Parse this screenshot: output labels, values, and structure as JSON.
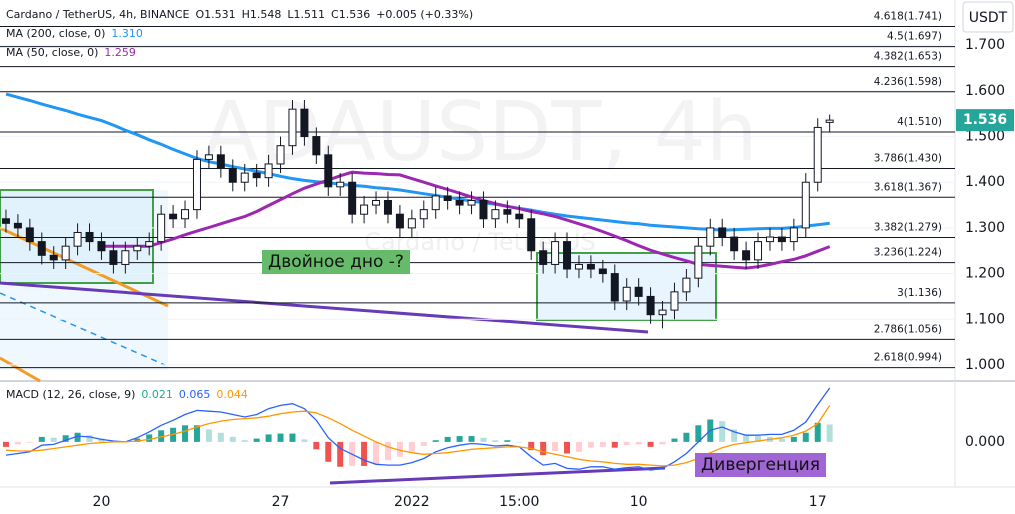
{
  "chart_data": [
    {
      "type": "candlestick",
      "legend_text": {
        "symbol": "Cardano / TetherUS, 4h, BINANCE",
        "open": "O1.531",
        "high": "H1.548",
        "low": "L1.511",
        "close": "C1.536",
        "change": "+0.005 (+0.33%)"
      },
      "watermark": "ADAUSDT, 4h",
      "watermark_sub": "Cardano / TetherUS",
      "currency": "USDT",
      "categories": [
        null,
        null,
        null,
        null,
        null,
        null,
        null,
        null,
        "20",
        null,
        null,
        null,
        null,
        null,
        null,
        null,
        null,
        null,
        null,
        null,
        null,
        null,
        null,
        "27",
        null,
        null,
        null,
        null,
        null,
        null,
        null,
        null,
        null,
        null,
        "2022",
        null,
        null,
        null,
        null,
        null,
        null,
        null,
        null,
        "15:00",
        null,
        null,
        null,
        null,
        null,
        null,
        null,
        null,
        null,
        "10",
        null,
        null,
        null,
        null,
        null,
        null,
        null,
        null,
        null,
        null,
        null,
        null,
        null,
        null,
        "17",
        null
      ],
      "open": [
        1.32,
        1.31,
        1.3,
        1.27,
        1.24,
        1.23,
        1.26,
        1.29,
        1.27,
        1.25,
        1.22,
        1.25,
        1.26,
        1.27,
        1.33,
        1.32,
        1.34,
        1.45,
        1.46,
        1.43,
        1.4,
        1.42,
        1.41,
        1.44,
        1.48,
        1.56,
        1.5,
        1.46,
        1.39,
        1.4,
        1.33,
        1.35,
        1.36,
        1.33,
        1.3,
        1.32,
        1.34,
        1.37,
        1.36,
        1.35,
        1.36,
        1.32,
        1.34,
        1.33,
        1.32,
        1.25,
        1.22,
        1.27,
        1.21,
        1.22,
        1.21,
        1.2,
        1.14,
        1.17,
        1.15,
        1.11,
        1.12,
        1.16,
        1.19,
        1.26,
        1.3,
        1.28,
        1.25,
        1.23,
        1.27,
        1.28,
        1.27,
        1.3,
        1.4,
        1.531
      ],
      "high": [
        1.34,
        1.33,
        1.32,
        1.29,
        1.26,
        1.28,
        1.31,
        1.31,
        1.29,
        1.27,
        1.27,
        1.28,
        1.29,
        1.35,
        1.35,
        1.36,
        1.47,
        1.48,
        1.48,
        1.45,
        1.44,
        1.44,
        1.46,
        1.5,
        1.58,
        1.58,
        1.52,
        1.48,
        1.42,
        1.42,
        1.37,
        1.38,
        1.38,
        1.35,
        1.34,
        1.36,
        1.39,
        1.39,
        1.38,
        1.38,
        1.38,
        1.36,
        1.36,
        1.35,
        1.34,
        1.27,
        1.29,
        1.29,
        1.24,
        1.24,
        1.23,
        1.22,
        1.19,
        1.19,
        1.17,
        1.14,
        1.18,
        1.21,
        1.28,
        1.32,
        1.32,
        1.3,
        1.27,
        1.29,
        1.3,
        1.3,
        1.32,
        1.42,
        1.54,
        1.548
      ],
      "low": [
        1.29,
        1.28,
        1.25,
        1.22,
        1.21,
        1.21,
        1.24,
        1.25,
        1.23,
        1.2,
        1.2,
        1.23,
        1.24,
        1.25,
        1.3,
        1.3,
        1.32,
        1.43,
        1.41,
        1.38,
        1.38,
        1.39,
        1.39,
        1.42,
        1.46,
        1.48,
        1.44,
        1.37,
        1.37,
        1.31,
        1.31,
        1.33,
        1.31,
        1.28,
        1.28,
        1.3,
        1.32,
        1.34,
        1.33,
        1.33,
        1.3,
        1.3,
        1.31,
        1.3,
        1.23,
        1.2,
        1.2,
        1.19,
        1.19,
        1.19,
        1.18,
        1.12,
        1.12,
        1.13,
        1.09,
        1.08,
        1.1,
        1.14,
        1.17,
        1.24,
        1.26,
        1.23,
        1.21,
        1.21,
        1.25,
        1.25,
        1.25,
        1.28,
        1.38,
        1.511
      ],
      "close": [
        1.31,
        1.3,
        1.27,
        1.24,
        1.23,
        1.26,
        1.29,
        1.27,
        1.25,
        1.22,
        1.25,
        1.26,
        1.27,
        1.33,
        1.32,
        1.34,
        1.45,
        1.46,
        1.43,
        1.4,
        1.42,
        1.41,
        1.44,
        1.48,
        1.56,
        1.5,
        1.46,
        1.39,
        1.4,
        1.33,
        1.35,
        1.36,
        1.33,
        1.3,
        1.32,
        1.34,
        1.37,
        1.36,
        1.35,
        1.36,
        1.32,
        1.34,
        1.33,
        1.32,
        1.25,
        1.22,
        1.27,
        1.21,
        1.22,
        1.21,
        1.2,
        1.14,
        1.17,
        1.15,
        1.11,
        1.12,
        1.16,
        1.19,
        1.26,
        1.3,
        1.28,
        1.25,
        1.23,
        1.27,
        1.28,
        1.27,
        1.3,
        1.4,
        1.52,
        1.536
      ],
      "up_color": "#26a69a",
      "down_color": "#ef5350",
      "lines": [
        {
          "name": "MA (200, close, 0)",
          "color": "#2196f3",
          "legend_value": "1.310",
          "values": [
            1.593,
            1.586,
            1.579,
            1.571,
            1.564,
            1.557,
            1.549,
            1.542,
            1.535,
            1.525,
            1.514,
            1.504,
            1.493,
            1.483,
            1.472,
            1.462,
            1.452,
            1.445,
            1.44,
            1.434,
            1.429,
            1.424,
            1.419,
            1.413,
            1.408,
            1.404,
            1.401,
            1.399,
            1.396,
            1.393,
            1.391,
            1.388,
            1.386,
            1.383,
            1.379,
            1.375,
            1.371,
            1.367,
            1.363,
            1.359,
            1.355,
            1.352,
            1.347,
            1.343,
            1.339,
            1.334,
            1.33,
            1.326,
            1.323,
            1.32,
            1.317,
            1.314,
            1.311,
            1.309,
            1.306,
            1.304,
            1.302,
            1.3,
            1.298,
            1.297,
            1.295,
            1.296,
            1.297,
            1.298,
            1.299,
            1.299,
            1.301,
            1.304,
            1.307,
            1.31
          ]
        },
        {
          "name": "MA (50, close, 0)",
          "color": "#9c27b0",
          "legend_value": "1.259",
          "values": [
            null,
            null,
            null,
            null,
            null,
            null,
            null,
            null,
            1.26,
            1.26,
            1.26,
            1.26,
            1.26,
            1.268,
            1.276,
            1.285,
            1.293,
            1.301,
            1.309,
            1.317,
            1.325,
            1.336,
            1.349,
            1.362,
            1.375,
            1.387,
            1.396,
            1.405,
            1.414,
            1.422,
            1.42,
            1.419,
            1.417,
            1.416,
            1.408,
            1.4,
            1.392,
            1.384,
            1.376,
            1.368,
            1.36,
            1.353,
            1.347,
            1.342,
            1.336,
            1.331,
            1.325,
            1.317,
            1.309,
            1.301,
            1.292,
            1.282,
            1.272,
            1.261,
            1.251,
            1.243,
            1.235,
            1.228,
            1.22,
            1.218,
            1.216,
            1.214,
            1.212,
            1.215,
            1.22,
            1.226,
            1.231,
            1.239,
            1.249,
            1.259
          ]
        }
      ],
      "fib_levels": [
        {
          "value": 1.741,
          "label": "4.618(1.741)"
        },
        {
          "value": 1.697,
          "label": "4.5(1.697)"
        },
        {
          "value": 1.653,
          "label": "4.382(1.653)"
        },
        {
          "value": 1.598,
          "label": "4.236(1.598)"
        },
        {
          "value": 1.51,
          "label": "4(1.510)"
        },
        {
          "value": 1.43,
          "label": "3.786(1.430)"
        },
        {
          "value": 1.367,
          "label": "3.618(1.367)"
        },
        {
          "value": 1.279,
          "label": "3.382(1.279)"
        },
        {
          "value": 1.224,
          "label": "3.236(1.224)"
        },
        {
          "value": 1.136,
          "label": "3(1.136)"
        },
        {
          "value": 1.056,
          "label": "2.786(1.056)"
        },
        {
          "value": 0.994,
          "label": "2.618(0.994)"
        }
      ],
      "price_label": {
        "value": 1.536,
        "label": "1.536"
      },
      "ylim": [
        0.967,
        1.799
      ],
      "yticks": [
        {
          "value": 1.0,
          "label": "1.000"
        },
        {
          "value": 1.1,
          "label": "1.100"
        },
        {
          "value": 1.2,
          "label": "1.200"
        },
        {
          "value": 1.3,
          "label": "1.300"
        },
        {
          "value": 1.4,
          "label": "1.400"
        },
        {
          "value": 1.5,
          "label": "1.500"
        },
        {
          "value": 1.6,
          "label": "1.600"
        },
        {
          "value": 1.7,
          "label": "1.700"
        }
      ],
      "grid": true,
      "annotations": [
        "Двойное дно -?",
        "Дивергенция"
      ]
    },
    {
      "type": "macd",
      "title": "MACD (12, 26, close, 9)",
      "series": [
        {
          "style": "histogram",
          "color": "#22ab94",
          "colors": [
            "#26a69a",
            "#b2dfdb",
            "#ef5350",
            "#ffcdd2"
          ],
          "legend_value": "0.021",
          "values": [
            -0.006,
            -0.003,
            -0.001,
            0.006,
            0.005,
            0.008,
            0.011,
            0.008,
            0.004,
            0.001,
            0.0,
            0.004,
            0.009,
            0.014,
            0.017,
            0.02,
            0.02,
            0.015,
            0.011,
            0.006,
            0.002,
            0.004,
            0.009,
            0.01,
            0.01,
            0.003,
            -0.009,
            -0.024,
            -0.03,
            -0.029,
            -0.029,
            -0.027,
            -0.022,
            -0.018,
            -0.012,
            -0.005,
            0.002,
            0.006,
            0.007,
            0.007,
            0.005,
            0.002,
            0.002,
            0.0,
            -0.01,
            -0.016,
            -0.011,
            -0.014,
            -0.012,
            -0.007,
            -0.006,
            -0.007,
            -0.004,
            -0.003,
            -0.006,
            -0.003,
            0.004,
            0.011,
            0.02,
            0.027,
            0.025,
            0.015,
            0.009,
            0.007,
            0.006,
            0.004,
            0.006,
            0.011,
            0.023,
            0.021
          ]
        },
        {
          "style": "line",
          "color": "#2962ff",
          "legend_value": "0.065",
          "values": [
            -0.016,
            -0.014,
            -0.012,
            -0.004,
            -0.003,
            0.002,
            0.007,
            0.006,
            0.003,
            0.001,
            0.0,
            0.005,
            0.012,
            0.02,
            0.026,
            0.033,
            0.038,
            0.037,
            0.036,
            0.033,
            0.03,
            0.033,
            0.04,
            0.044,
            0.046,
            0.04,
            0.026,
            0.005,
            -0.008,
            -0.015,
            -0.022,
            -0.027,
            -0.028,
            -0.028,
            -0.025,
            -0.02,
            -0.012,
            -0.007,
            -0.004,
            -0.002,
            -0.003,
            -0.005,
            -0.004,
            -0.006,
            -0.018,
            -0.028,
            -0.026,
            -0.032,
            -0.033,
            -0.03,
            -0.03,
            -0.033,
            -0.031,
            -0.03,
            -0.034,
            -0.032,
            -0.024,
            -0.014,
            0.0,
            0.014,
            0.018,
            0.012,
            0.008,
            0.008,
            0.009,
            0.009,
            0.014,
            0.024,
            0.045,
            0.065
          ]
        },
        {
          "style": "line",
          "color": "#ff9800",
          "legend_value": "0.044",
          "values": [
            -0.01,
            -0.011,
            -0.011,
            -0.01,
            -0.008,
            -0.006,
            -0.004,
            -0.002,
            -0.001,
            0.0,
            0.0,
            0.001,
            0.003,
            0.006,
            0.009,
            0.013,
            0.018,
            0.022,
            0.025,
            0.027,
            0.028,
            0.029,
            0.031,
            0.034,
            0.036,
            0.037,
            0.035,
            0.029,
            0.022,
            0.014,
            0.007,
            0.0,
            -0.006,
            -0.01,
            -0.013,
            -0.015,
            -0.014,
            -0.013,
            -0.011,
            -0.009,
            -0.008,
            -0.007,
            -0.006,
            -0.006,
            -0.008,
            -0.012,
            -0.015,
            -0.018,
            -0.021,
            -0.023,
            -0.024,
            -0.026,
            -0.027,
            -0.027,
            -0.028,
            -0.029,
            -0.028,
            -0.025,
            -0.02,
            -0.013,
            -0.007,
            -0.003,
            -0.001,
            0.001,
            0.003,
            0.005,
            0.008,
            0.013,
            0.022,
            0.044
          ]
        }
      ],
      "ylim": [
        -0.052,
        0.071
      ],
      "yticks": [
        {
          "value": 0,
          "label": "0.000"
        }
      ]
    }
  ]
}
